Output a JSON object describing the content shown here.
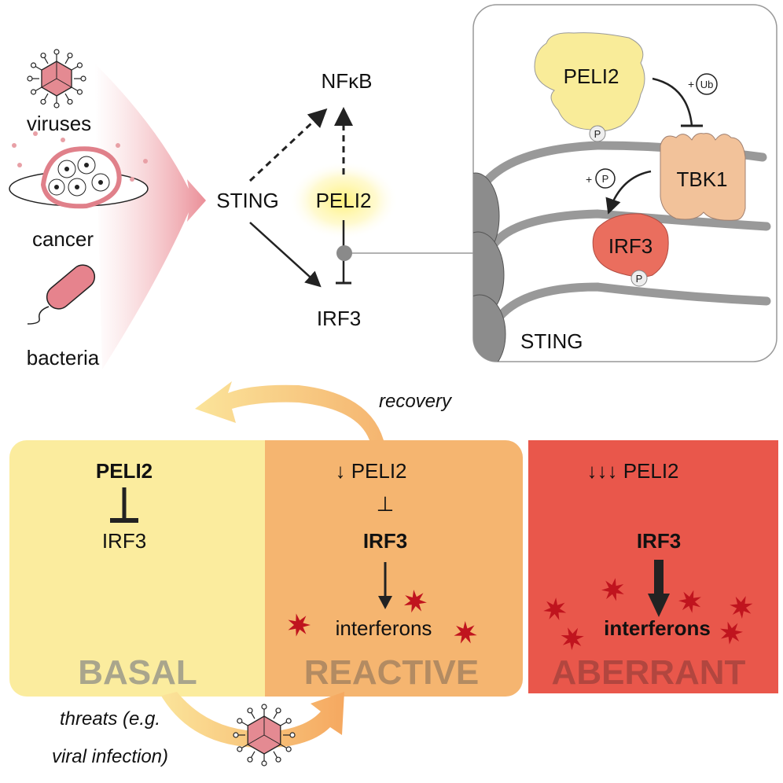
{
  "top_left": {
    "threat_labels": [
      "viruses",
      "cancer",
      "bacteria"
    ]
  },
  "pathway": {
    "sting": "STING",
    "nfkb": "NFκB",
    "peli2": "PELI2",
    "irf3": "IRF3"
  },
  "inset": {
    "peli2": "PELI2",
    "ub_prefix": "+",
    "ub": "Ub",
    "tbk1": "TBK1",
    "p_prefix": "+",
    "p": "P",
    "irf3": "IRF3",
    "sting": "STING"
  },
  "states": {
    "basal": {
      "peli2": "PELI2",
      "irf3": "IRF3",
      "label": "BASAL",
      "color": "#fbec9e",
      "label_color": "#a9a58c"
    },
    "reactive": {
      "peli2": "↓ PELI2",
      "inhibit": "⊥",
      "irf3": "IRF3",
      "interferons": "interferons",
      "label": "REACTIVE",
      "color": "#f5b570",
      "label_color": "#b38b62"
    },
    "aberrant": {
      "peli2": "↓↓↓ PELI2",
      "irf3": "IRF3",
      "interferons": "interferons",
      "label": "ABERRANT",
      "color": "#e9574b",
      "label_color": "#b2463f"
    }
  },
  "transitions": {
    "recovery": "recovery",
    "threats_line1": "threats (e.g.",
    "threats_line2": "viral infection)"
  }
}
